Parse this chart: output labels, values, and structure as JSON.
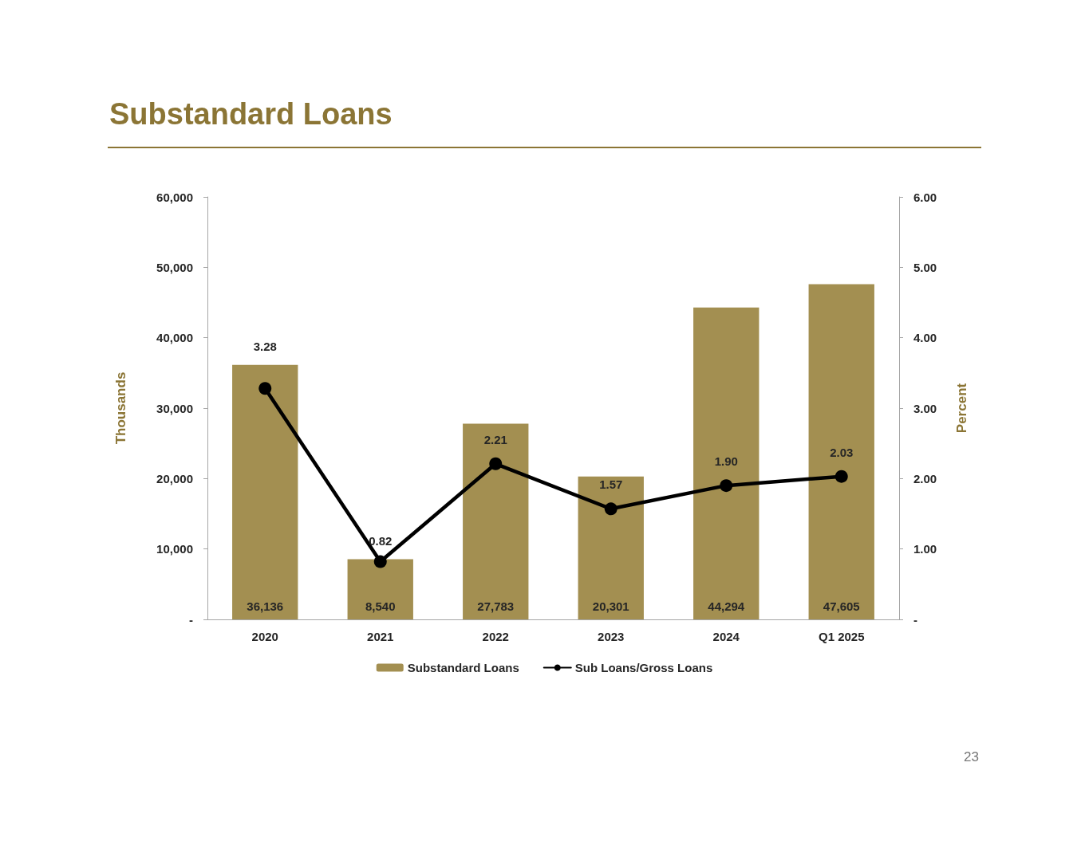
{
  "chart_data": {
    "type": "bar",
    "title": "Substandard Loans",
    "categories": [
      "2020",
      "2021",
      "2022",
      "2023",
      "2024",
      "Q1 2025"
    ],
    "series": [
      {
        "name": "Substandard Loans",
        "color": "#a38f51",
        "values": [
          36136,
          8540,
          27783,
          20301,
          44294,
          47605
        ],
        "value_labels": [
          "36,136",
          "8,540",
          "27,783",
          "20,301",
          "44,294",
          "47,605"
        ]
      },
      {
        "name": "Sub Loans/Gross Loans",
        "type": "line",
        "axis": "y2",
        "color": "#000000",
        "values": [
          3.28,
          0.82,
          2.21,
          1.57,
          1.9,
          2.03
        ],
        "value_labels": [
          "3.28",
          "0.82",
          "2.21",
          "1.57",
          "1.90",
          "2.03"
        ]
      }
    ],
    "ylabel": "Thousands",
    "y2label": "Percent",
    "ylim": [
      0,
      60000
    ],
    "yticks": [
      {
        "value": 0,
        "label": "-"
      },
      {
        "value": 10000,
        "label": "10,000"
      },
      {
        "value": 20000,
        "label": "20,000"
      },
      {
        "value": 30000,
        "label": "30,000"
      },
      {
        "value": 40000,
        "label": "40,000"
      },
      {
        "value": 50000,
        "label": "50,000"
      },
      {
        "value": 60000,
        "label": "60,000"
      }
    ],
    "y2lim": [
      0,
      6
    ],
    "y2ticks": [
      {
        "value": 0,
        "label": "-"
      },
      {
        "value": 1,
        "label": "1.00"
      },
      {
        "value": 2,
        "label": "2.00"
      },
      {
        "value": 3,
        "label": "3.00"
      },
      {
        "value": 4,
        "label": "4.00"
      },
      {
        "value": 5,
        "label": "5.00"
      },
      {
        "value": 6,
        "label": "6.00"
      }
    ],
    "grid": false,
    "legend": "bottom",
    "marker": "circle",
    "line_style": "solid",
    "annotations": [
      "23"
    ]
  }
}
